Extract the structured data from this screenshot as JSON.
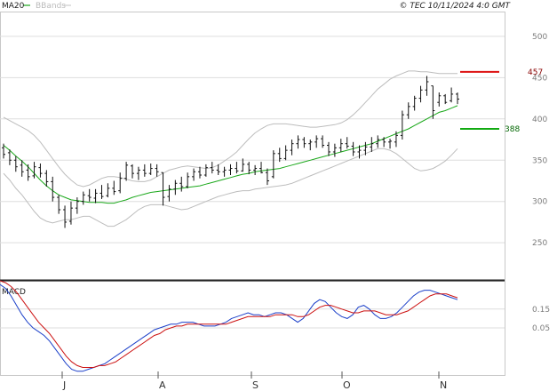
{
  "header": {
    "indicator_ma": "MA20",
    "indicator_bb": "BBands",
    "source": "© TEC 10/11/2024 4:0 GMT"
  },
  "macd_label": "MACD",
  "level_labels": {
    "resistance": "457",
    "support": "388"
  },
  "chart_data": [
    {
      "type": "line",
      "title": "",
      "x_axis": {
        "tick_labels": [
          "J",
          "A",
          "S",
          "O",
          "N"
        ]
      },
      "y_axis": {
        "range": [
          205,
          530
        ],
        "tick_labels": [
          "500",
          "450",
          "400",
          "350",
          "300",
          "250"
        ],
        "side": "right"
      },
      "grid": true,
      "series": [
        {
          "name": "MA20",
          "color": "#1aa81a",
          "values": [
            368,
            362,
            355,
            349,
            342,
            334,
            326,
            319,
            313,
            308,
            305,
            302,
            301,
            300,
            299,
            299,
            299,
            298,
            298,
            300,
            302,
            305,
            307,
            309,
            311,
            312,
            313,
            314,
            315,
            316,
            317,
            318,
            319,
            321,
            323,
            325,
            327,
            329,
            331,
            333,
            334,
            336,
            337,
            338,
            339,
            340,
            342,
            344,
            346,
            348,
            350,
            352,
            354,
            356,
            358,
            360,
            362,
            364,
            366,
            368,
            370,
            373,
            376,
            379,
            382,
            385,
            388,
            392,
            396,
            400,
            404,
            408,
            410,
            413,
            416
          ]
        },
        {
          "name": "BBands",
          "color": "#bdbdbd",
          "upper": [
            402,
            398,
            394,
            390,
            386,
            380,
            372,
            362,
            352,
            342,
            333,
            326,
            320,
            318,
            320,
            324,
            328,
            330,
            330,
            329,
            327,
            325,
            324,
            324,
            326,
            330,
            334,
            338,
            340,
            342,
            343,
            342,
            341,
            340,
            341,
            344,
            349,
            354,
            360,
            368,
            376,
            383,
            388,
            392,
            394,
            394,
            394,
            393,
            392,
            391,
            390,
            390,
            391,
            392,
            393,
            395,
            399,
            405,
            412,
            420,
            428,
            436,
            442,
            448,
            452,
            455,
            458,
            458,
            457,
            457,
            456,
            455,
            455,
            455,
            455
          ],
          "lower": [
            334,
            326,
            316,
            308,
            298,
            288,
            280,
            276,
            274,
            276,
            278,
            278,
            280,
            282,
            282,
            278,
            274,
            270,
            270,
            274,
            278,
            284,
            290,
            294,
            296,
            296,
            296,
            294,
            292,
            290,
            291,
            294,
            297,
            300,
            303,
            306,
            308,
            310,
            312,
            313,
            313,
            315,
            316,
            317,
            318,
            319,
            320,
            322,
            325,
            328,
            331,
            334,
            337,
            340,
            343,
            346,
            349,
            352,
            355,
            358,
            361,
            364,
            364,
            362,
            358,
            352,
            346,
            340,
            337,
            338,
            340,
            344,
            349,
            356,
            364
          ]
        }
      ],
      "ohlc": [
        {
          "h": 370,
          "l": 352,
          "o": 365,
          "c": 357
        },
        {
          "h": 363,
          "l": 344,
          "o": 359,
          "c": 350
        },
        {
          "h": 355,
          "l": 336,
          "o": 350,
          "c": 342
        },
        {
          "h": 350,
          "l": 330,
          "o": 344,
          "c": 336
        },
        {
          "h": 345,
          "l": 325,
          "o": 338,
          "c": 330
        },
        {
          "h": 348,
          "l": 328,
          "o": 331,
          "c": 342
        },
        {
          "h": 346,
          "l": 329,
          "o": 341,
          "c": 334
        },
        {
          "h": 338,
          "l": 318,
          "o": 334,
          "c": 324
        },
        {
          "h": 330,
          "l": 300,
          "o": 324,
          "c": 305
        },
        {
          "h": 308,
          "l": 285,
          "o": 305,
          "c": 290
        },
        {
          "h": 295,
          "l": 268,
          "o": 290,
          "c": 275
        },
        {
          "h": 300,
          "l": 272,
          "o": 276,
          "c": 292
        },
        {
          "h": 305,
          "l": 285,
          "o": 292,
          "c": 300
        },
        {
          "h": 312,
          "l": 296,
          "o": 300,
          "c": 308
        },
        {
          "h": 315,
          "l": 300,
          "o": 307,
          "c": 305
        },
        {
          "h": 315,
          "l": 298,
          "o": 304,
          "c": 310
        },
        {
          "h": 320,
          "l": 303,
          "o": 310,
          "c": 306
        },
        {
          "h": 322,
          "l": 305,
          "o": 307,
          "c": 316
        },
        {
          "h": 325,
          "l": 308,
          "o": 316,
          "c": 312
        },
        {
          "h": 335,
          "l": 310,
          "o": 313,
          "c": 328
        },
        {
          "h": 348,
          "l": 325,
          "o": 328,
          "c": 344
        },
        {
          "h": 345,
          "l": 328,
          "o": 343,
          "c": 334
        },
        {
          "h": 342,
          "l": 326,
          "o": 334,
          "c": 338
        },
        {
          "h": 345,
          "l": 330,
          "o": 338,
          "c": 334
        },
        {
          "h": 346,
          "l": 332,
          "o": 334,
          "c": 340
        },
        {
          "h": 345,
          "l": 330,
          "o": 340,
          "c": 336
        },
        {
          "h": 335,
          "l": 295,
          "o": 335,
          "c": 305
        },
        {
          "h": 320,
          "l": 300,
          "o": 306,
          "c": 315
        },
        {
          "h": 326,
          "l": 308,
          "o": 315,
          "c": 322
        },
        {
          "h": 330,
          "l": 312,
          "o": 322,
          "c": 318
        },
        {
          "h": 335,
          "l": 316,
          "o": 318,
          "c": 330
        },
        {
          "h": 340,
          "l": 325,
          "o": 330,
          "c": 336
        },
        {
          "h": 342,
          "l": 328,
          "o": 336,
          "c": 332
        },
        {
          "h": 345,
          "l": 330,
          "o": 332,
          "c": 341
        },
        {
          "h": 348,
          "l": 334,
          "o": 341,
          "c": 338
        },
        {
          "h": 345,
          "l": 332,
          "o": 338,
          "c": 336
        },
        {
          "h": 342,
          "l": 330,
          "o": 336,
          "c": 338
        },
        {
          "h": 345,
          "l": 332,
          "o": 338,
          "c": 340
        },
        {
          "h": 348,
          "l": 334,
          "o": 340,
          "c": 337
        },
        {
          "h": 352,
          "l": 336,
          "o": 337,
          "c": 345
        },
        {
          "h": 348,
          "l": 333,
          "o": 345,
          "c": 338
        },
        {
          "h": 344,
          "l": 332,
          "o": 338,
          "c": 340
        },
        {
          "h": 348,
          "l": 334,
          "o": 340,
          "c": 335
        },
        {
          "h": 340,
          "l": 320,
          "o": 335,
          "c": 325
        },
        {
          "h": 362,
          "l": 328,
          "o": 330,
          "c": 358
        },
        {
          "h": 365,
          "l": 348,
          "o": 358,
          "c": 352
        },
        {
          "h": 368,
          "l": 350,
          "o": 352,
          "c": 362
        },
        {
          "h": 375,
          "l": 356,
          "o": 362,
          "c": 370
        },
        {
          "h": 380,
          "l": 364,
          "o": 370,
          "c": 375
        },
        {
          "h": 378,
          "l": 365,
          "o": 375,
          "c": 370
        },
        {
          "h": 375,
          "l": 362,
          "o": 370,
          "c": 372
        },
        {
          "h": 380,
          "l": 365,
          "o": 372,
          "c": 376
        },
        {
          "h": 380,
          "l": 365,
          "o": 376,
          "c": 368
        },
        {
          "h": 372,
          "l": 355,
          "o": 368,
          "c": 360
        },
        {
          "h": 370,
          "l": 354,
          "o": 360,
          "c": 365
        },
        {
          "h": 376,
          "l": 360,
          "o": 365,
          "c": 370
        },
        {
          "h": 378,
          "l": 364,
          "o": 370,
          "c": 367
        },
        {
          "h": 372,
          "l": 355,
          "o": 367,
          "c": 360
        },
        {
          "h": 368,
          "l": 352,
          "o": 360,
          "c": 362
        },
        {
          "h": 372,
          "l": 356,
          "o": 362,
          "c": 366
        },
        {
          "h": 378,
          "l": 360,
          "o": 366,
          "c": 370
        },
        {
          "h": 380,
          "l": 365,
          "o": 370,
          "c": 375
        },
        {
          "h": 378,
          "l": 366,
          "o": 375,
          "c": 372
        },
        {
          "h": 376,
          "l": 364,
          "o": 372,
          "c": 373
        },
        {
          "h": 385,
          "l": 366,
          "o": 372,
          "c": 380
        },
        {
          "h": 410,
          "l": 375,
          "o": 380,
          "c": 405
        },
        {
          "h": 420,
          "l": 400,
          "o": 405,
          "c": 415
        },
        {
          "h": 428,
          "l": 410,
          "o": 415,
          "c": 425
        },
        {
          "h": 440,
          "l": 420,
          "o": 425,
          "c": 435
        },
        {
          "h": 452,
          "l": 428,
          "o": 435,
          "c": 445
        },
        {
          "h": 440,
          "l": 400,
          "o": 440,
          "c": 410
        },
        {
          "h": 432,
          "l": 415,
          "o": 420,
          "c": 428
        },
        {
          "h": 430,
          "l": 418,
          "o": 428,
          "c": 420
        },
        {
          "h": 438,
          "l": 420,
          "o": 422,
          "c": 430
        },
        {
          "h": 432,
          "l": 418,
          "o": 430,
          "c": 424
        }
      ],
      "levels": [
        {
          "label": "457",
          "value": 457,
          "color": "#dd1111"
        },
        {
          "label": "388",
          "value": 388,
          "color": "#11aa11"
        }
      ]
    },
    {
      "type": "line",
      "title": "MACD",
      "y_axis": {
        "range": [
          -0.2,
          0.3
        ],
        "tick_labels": [
          "0.15",
          "0.05"
        ],
        "side": "right"
      },
      "grid": true,
      "series": [
        {
          "name": "MACD",
          "color": "#1b3fc9",
          "values": [
            0.28,
            0.26,
            0.22,
            0.17,
            0.12,
            0.08,
            0.05,
            0.03,
            0.01,
            -0.02,
            -0.06,
            -0.1,
            -0.14,
            -0.17,
            -0.18,
            -0.18,
            -0.17,
            -0.16,
            -0.15,
            -0.14,
            -0.12,
            -0.1,
            -0.08,
            -0.06,
            -0.04,
            -0.02,
            0.0,
            0.02,
            0.04,
            0.05,
            0.06,
            0.07,
            0.07,
            0.08,
            0.08,
            0.08,
            0.07,
            0.06,
            0.06,
            0.06,
            0.07,
            0.08,
            0.1,
            0.11,
            0.12,
            0.13,
            0.12,
            0.12,
            0.11,
            0.12,
            0.13,
            0.13,
            0.12,
            0.1,
            0.08,
            0.1,
            0.14,
            0.18,
            0.2,
            0.19,
            0.16,
            0.13,
            0.11,
            0.1,
            0.12,
            0.16,
            0.17,
            0.15,
            0.12,
            0.1,
            0.1,
            0.11,
            0.13,
            0.16,
            0.19,
            0.22,
            0.24,
            0.25,
            0.25,
            0.24,
            0.23,
            0.22,
            0.21,
            0.2
          ]
        },
        {
          "name": "Signal",
          "color": "#cc1111",
          "values": [
            0.3,
            0.29,
            0.27,
            0.24,
            0.2,
            0.16,
            0.12,
            0.08,
            0.05,
            0.02,
            -0.02,
            -0.06,
            -0.1,
            -0.13,
            -0.15,
            -0.16,
            -0.16,
            -0.16,
            -0.15,
            -0.15,
            -0.14,
            -0.13,
            -0.11,
            -0.09,
            -0.07,
            -0.05,
            -0.03,
            -0.01,
            0.01,
            0.02,
            0.04,
            0.05,
            0.06,
            0.06,
            0.07,
            0.07,
            0.07,
            0.07,
            0.07,
            0.07,
            0.07,
            0.07,
            0.08,
            0.09,
            0.1,
            0.11,
            0.11,
            0.11,
            0.11,
            0.11,
            0.12,
            0.12,
            0.12,
            0.12,
            0.11,
            0.11,
            0.12,
            0.14,
            0.16,
            0.17,
            0.17,
            0.16,
            0.15,
            0.14,
            0.13,
            0.13,
            0.14,
            0.14,
            0.14,
            0.13,
            0.12,
            0.12,
            0.12,
            0.13,
            0.14,
            0.16,
            0.18,
            0.2,
            0.22,
            0.23,
            0.23,
            0.23,
            0.22,
            0.21
          ]
        }
      ]
    }
  ]
}
